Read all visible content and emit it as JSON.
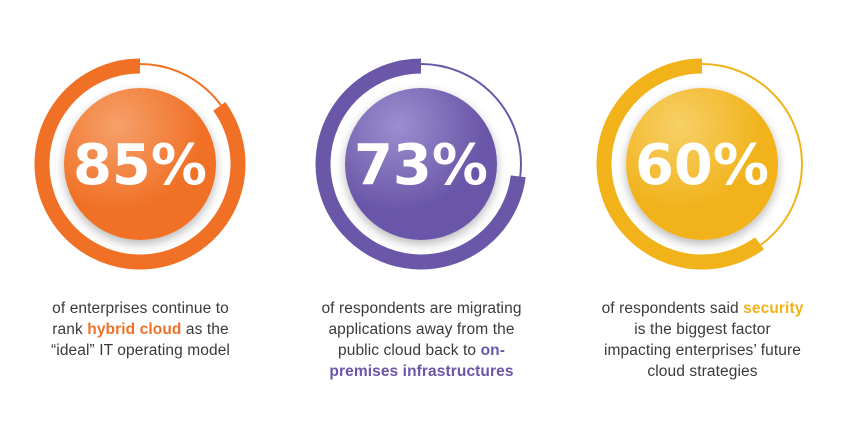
{
  "stats": [
    {
      "value": "85%",
      "fraction": 0.85,
      "color": "#f07126",
      "color_light": "#f6a06a",
      "caption": [
        [
          {
            "t": "of enterprises continue to"
          }
        ],
        [
          {
            "t": "rank "
          },
          {
            "t": "hybrid cloud",
            "hl": true
          },
          {
            "t": " as the"
          }
        ],
        [
          {
            "t": "“ideal” IT operating model"
          }
        ]
      ]
    },
    {
      "value": "73%",
      "fraction": 0.73,
      "color": "#6a57a8",
      "color_light": "#9c8ed0",
      "caption": [
        [
          {
            "t": "of respondents are migrating"
          }
        ],
        [
          {
            "t": "applications away from the"
          }
        ],
        [
          {
            "t": "public cloud back to "
          },
          {
            "t": "on-",
            "hl": true
          }
        ],
        [
          {
            "t": "premises infrastructures",
            "hl": true
          }
        ]
      ]
    },
    {
      "value": "60%",
      "fraction": 0.6,
      "color": "#f1b21a",
      "color_light": "#f7d067",
      "caption": [
        [
          {
            "t": "of respondents said "
          },
          {
            "t": "security",
            "hl": true
          }
        ],
        [
          {
            "t": "is the biggest factor"
          }
        ],
        [
          {
            "t": "impacting enterprises’ future"
          }
        ],
        [
          {
            "t": "cloud strategies"
          }
        ]
      ]
    }
  ]
}
